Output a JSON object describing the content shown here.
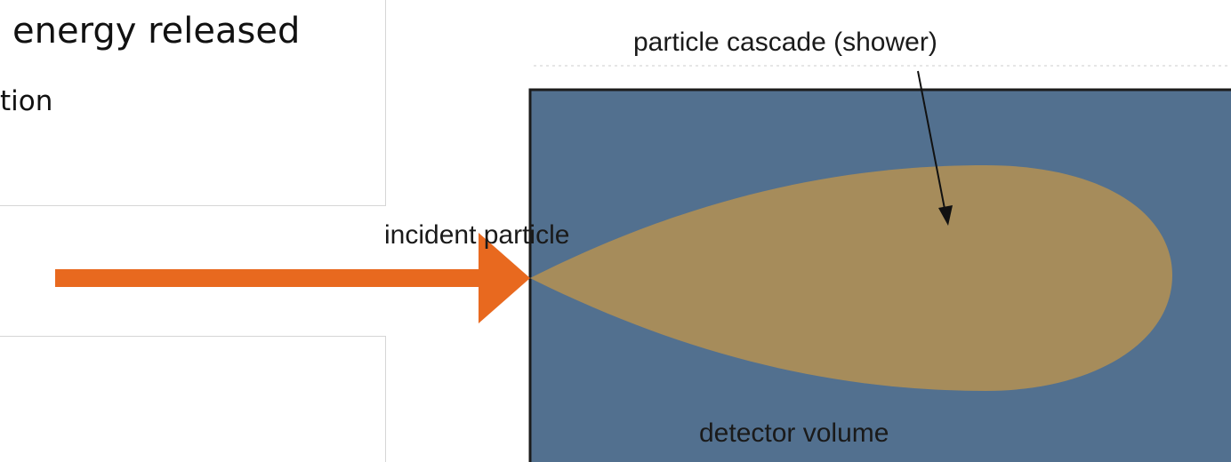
{
  "slide": {
    "headline": "energy released",
    "subline": "tion"
  },
  "diagram": {
    "incident_label": "incident particle",
    "cascade_label": "particle cascade (shower)",
    "detector_label": "detector volume",
    "colors": {
      "detector_fill": "#52708f",
      "shower_fill": "#a68c5b",
      "arrow_fill": "#e8691f",
      "pointer": "#111111"
    }
  }
}
